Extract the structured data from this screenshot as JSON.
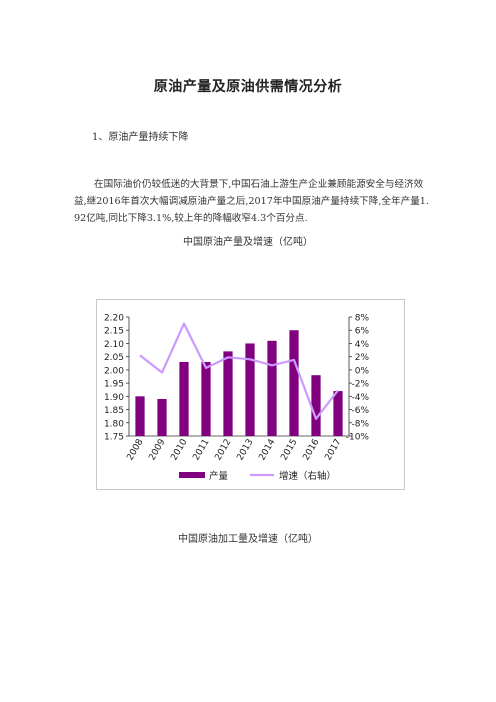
{
  "doc": {
    "title": "原油产量及原油供需情况分析",
    "section_heading": "1、原油产量持续下降",
    "paragraph": "在国际油价仍较低迷的大背景下,中国石油上游生产企业兼顾能源安全与经济效益,继2016年首次大幅调减原油产量之后,2017年中国原油产量持续下降,全年产量1.92亿吨,同比下降3.1%,较上年的降幅收窄4.3个百分点.",
    "caption1": "中国原油产量及增速（亿吨）",
    "caption2": "中国原油加工量及增速（亿吨）"
  },
  "colors": {
    "bar": "#800080",
    "line": "#cc99ff"
  },
  "chart_data": {
    "type": "bar",
    "categories": [
      "2008",
      "2009",
      "2010",
      "2011",
      "2012",
      "2013",
      "2014",
      "2015",
      "2016",
      "2017"
    ],
    "series": [
      {
        "name": "产量",
        "type": "bar",
        "axis": "left",
        "values": [
          1.9,
          1.89,
          2.03,
          2.03,
          2.07,
          2.1,
          2.11,
          2.15,
          1.98,
          1.92
        ]
      },
      {
        "name": "增速（右轴）",
        "type": "line",
        "axis": "right",
        "values": [
          2.2,
          -0.4,
          7.0,
          0.3,
          1.9,
          1.6,
          0.7,
          1.5,
          -7.4,
          -3.1
        ]
      }
    ],
    "ylim": [
      1.75,
      2.2
    ],
    "y_ticks": [
      "2.20",
      "2.15",
      "2.10",
      "2.05",
      "2.00",
      "1.95",
      "1.90",
      "1.85",
      "1.80",
      "1.75"
    ],
    "y2lim": [
      -10,
      8
    ],
    "y2_ticks": [
      "8%",
      "6%",
      "4%",
      "2%",
      "0%",
      "-2%",
      "-4%",
      "-6%",
      "-8%",
      "-10%"
    ],
    "legend_position": "bottom",
    "grid": false
  }
}
